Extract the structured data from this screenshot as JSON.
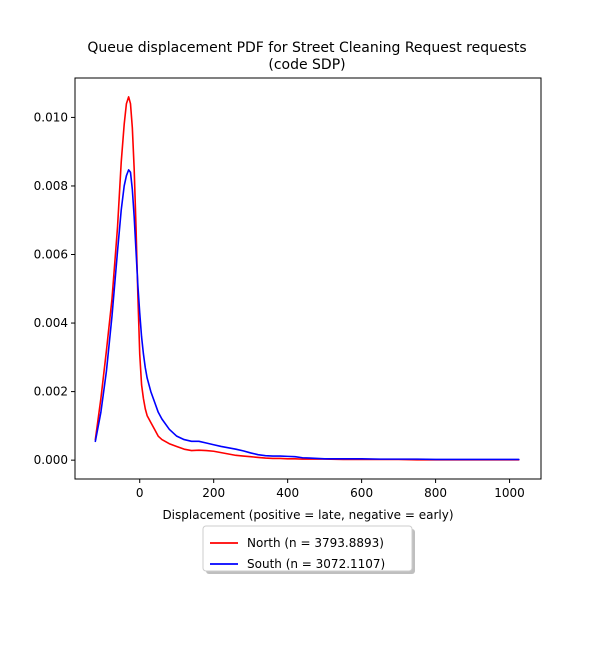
{
  "chart_data": {
    "type": "line",
    "title": "Queue displacement PDF for Street Cleaning Request  requests\n(code SDP)",
    "xlabel": "Displacement (positive = late, negative = early)",
    "ylabel": "",
    "xlim": [
      -175,
      1085
    ],
    "ylim": [
      -0.00055,
      0.01115
    ],
    "xticks": [
      0,
      200,
      400,
      600,
      800,
      1000
    ],
    "xtick_labels": [
      "0",
      "200",
      "400",
      "600",
      "800",
      "1000"
    ],
    "yticks": [
      0.0,
      0.002,
      0.004,
      0.006,
      0.008,
      0.01
    ],
    "ytick_labels": [
      "0.000",
      "0.002",
      "0.004",
      "0.006",
      "0.008",
      "0.010"
    ],
    "grid": false,
    "legend_position": "below-center",
    "series": [
      {
        "name": "North (n = 3793.8893)",
        "color": "#ff0000",
        "x": [
          -120,
          -105,
          -90,
          -75,
          -60,
          -50,
          -42,
          -36,
          -30,
          -25,
          -20,
          -15,
          -10,
          -5,
          0,
          5,
          10,
          15,
          20,
          30,
          40,
          50,
          60,
          80,
          100,
          120,
          140,
          160,
          180,
          200,
          220,
          240,
          260,
          280,
          300,
          320,
          340,
          360,
          380,
          400,
          420,
          440,
          460,
          480,
          500,
          550,
          600,
          650,
          700,
          750,
          800,
          850,
          900,
          950,
          1000,
          1025
        ],
        "y": [
          0.0006,
          0.0018,
          0.0032,
          0.0047,
          0.0068,
          0.0087,
          0.0098,
          0.0104,
          0.0106,
          0.0104,
          0.0097,
          0.0085,
          0.0068,
          0.0048,
          0.0031,
          0.0022,
          0.0018,
          0.0015,
          0.0013,
          0.0011,
          0.0009,
          0.0007,
          0.0006,
          0.00048,
          0.0004,
          0.00032,
          0.00028,
          0.00029,
          0.00028,
          0.00026,
          0.00022,
          0.00018,
          0.00014,
          0.00012,
          0.0001,
          8e-05,
          6e-05,
          5e-05,
          5e-05,
          4e-05,
          4e-05,
          3e-05,
          3e-05,
          3e-05,
          3e-05,
          2e-05,
          2e-05,
          2e-05,
          2e-05,
          1e-05,
          1e-05,
          1e-05,
          1e-05,
          1e-05,
          1e-05,
          1e-05
        ]
      },
      {
        "name": "South (n = 3072.1107)",
        "color": "#0000ff",
        "x": [
          -120,
          -105,
          -90,
          -75,
          -60,
          -50,
          -42,
          -36,
          -30,
          -25,
          -20,
          -15,
          -10,
          -5,
          0,
          5,
          10,
          15,
          20,
          30,
          40,
          50,
          60,
          80,
          100,
          120,
          140,
          160,
          180,
          200,
          220,
          240,
          260,
          280,
          300,
          320,
          340,
          360,
          380,
          400,
          420,
          440,
          460,
          480,
          500,
          550,
          600,
          650,
          700,
          750,
          800,
          850,
          900,
          950,
          1000,
          1025
        ],
        "y": [
          0.00055,
          0.0014,
          0.0026,
          0.0042,
          0.0061,
          0.0073,
          0.008,
          0.0083,
          0.00847,
          0.0084,
          0.0079,
          0.0071,
          0.0061,
          0.0051,
          0.0043,
          0.0036,
          0.0031,
          0.0027,
          0.0024,
          0.002,
          0.0017,
          0.0014,
          0.0012,
          0.0009,
          0.0007,
          0.0006,
          0.00055,
          0.00055,
          0.0005,
          0.00045,
          0.0004,
          0.00036,
          0.00032,
          0.00027,
          0.00021,
          0.00016,
          0.00013,
          0.00012,
          0.00012,
          0.00011,
          0.0001,
          7e-05,
          6e-05,
          5e-05,
          4e-05,
          4e-05,
          4e-05,
          3e-05,
          3e-05,
          3e-05,
          2e-05,
          2e-05,
          2e-05,
          2e-05,
          2e-05,
          2e-05
        ]
      }
    ]
  }
}
